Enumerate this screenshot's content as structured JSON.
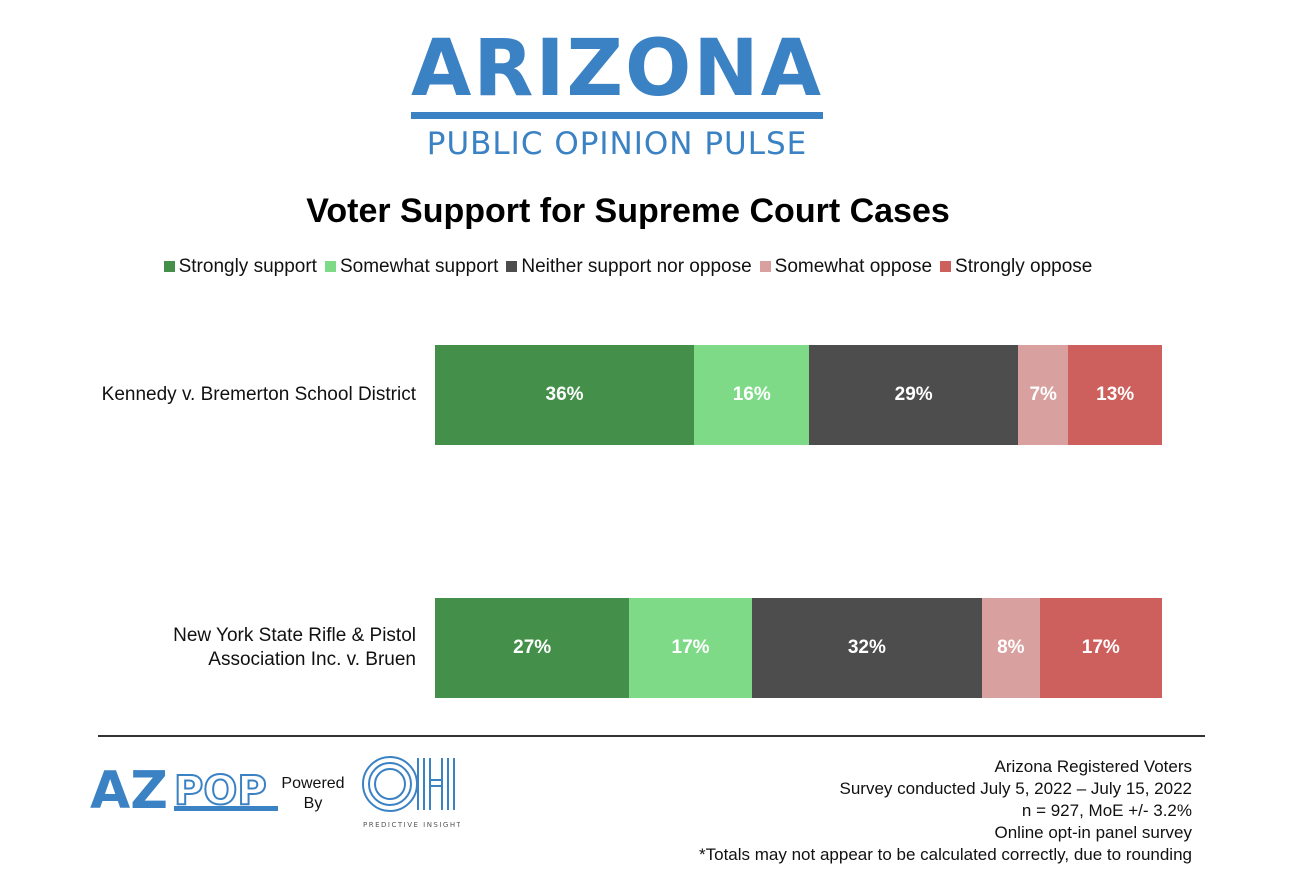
{
  "header": {
    "brand_title": "ARIZONA",
    "brand_subtitle": "PUBLIC OPINION PULSE"
  },
  "chart_data": {
    "type": "bar",
    "orientation": "horizontal",
    "stacked": true,
    "title": "Voter Support for Supreme Court Cases",
    "xlabel": "",
    "ylabel": "",
    "legend_position": "top",
    "categories": [
      "Kennedy v. Bremerton School District",
      "New York State Rifle & Pistol Association Inc. v. Bruen"
    ],
    "category_lines": [
      [
        "Kennedy v. Bremerton School District"
      ],
      [
        "New York State Rifle & Pistol",
        "Association Inc. v. Bruen"
      ]
    ],
    "series": [
      {
        "name": "Strongly support",
        "color": "#44904a",
        "values": [
          36,
          27
        ],
        "labels": [
          "36%",
          "27%"
        ]
      },
      {
        "name": "Somewhat support",
        "color": "#7fda88",
        "values": [
          16,
          17
        ],
        "labels": [
          "16%",
          "17%"
        ]
      },
      {
        "name": "Neither support nor oppose",
        "color": "#4d4d4d",
        "values": [
          29,
          32
        ],
        "labels": [
          "29%",
          "32%"
        ]
      },
      {
        "name": "Somewhat oppose",
        "color": "#d8a09f",
        "values": [
          7,
          8
        ],
        "labels": [
          "7%",
          "8%"
        ]
      },
      {
        "name": "Strongly oppose",
        "color": "#cd5f5d",
        "values": [
          13,
          17
        ],
        "labels": [
          "13%",
          "17%"
        ]
      }
    ]
  },
  "footer": {
    "logo_text": "AZPOP",
    "powered_by": [
      "Powered",
      "By"
    ],
    "partner_logo_text": "PREDICTIVE INSIGHTS",
    "notes": [
      "Arizona Registered Voters",
      "Survey conducted July 5, 2022 – July 15, 2022",
      "n = 927, MoE +/- 3.2%",
      "Online opt-in panel survey",
      "*Totals may not appear to be calculated correctly, due to rounding"
    ]
  }
}
